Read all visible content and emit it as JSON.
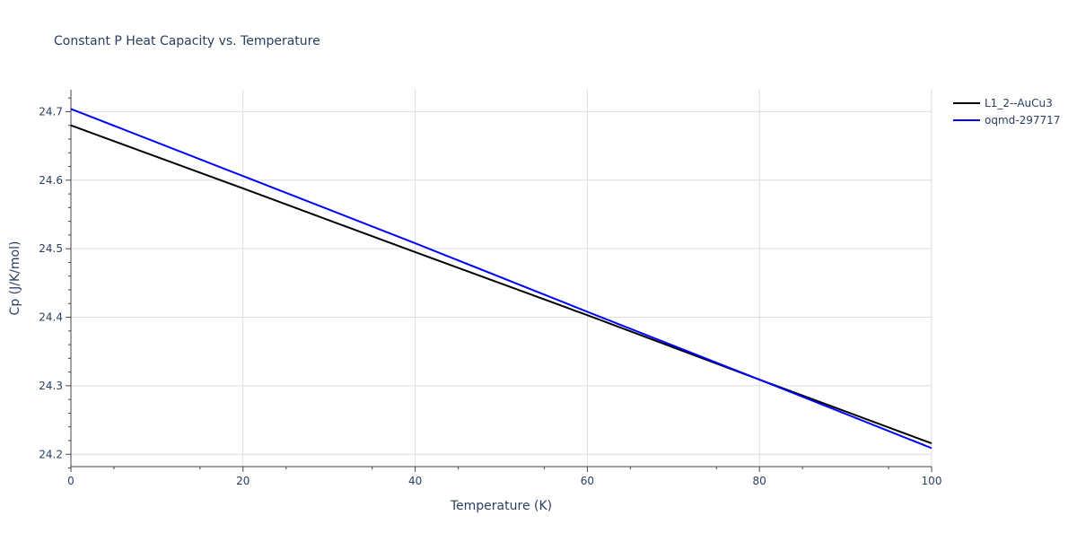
{
  "chart_data": {
    "type": "line",
    "title": "Constant P Heat Capacity vs. Temperature",
    "xlabel": "Temperature (K)",
    "ylabel": "Cp (J/K/mol)",
    "xlim": [
      0,
      100
    ],
    "ylim": [
      24.182,
      24.732
    ],
    "xticks": [
      0,
      20,
      40,
      60,
      80,
      100
    ],
    "yticks": [
      24.2,
      24.3,
      24.4,
      24.5,
      24.6,
      24.7
    ],
    "ytick_labels": [
      "24.2",
      "24.3",
      "24.4",
      "24.5",
      "24.6",
      "24.7"
    ],
    "grid": true,
    "legend_position": "top-right",
    "series": [
      {
        "name": "L1_2--AuCu3",
        "color": "#000000",
        "x": [
          0,
          20,
          40,
          60,
          80,
          100
        ],
        "y": [
          24.68,
          24.588,
          24.495,
          24.403,
          24.309,
          24.216
        ]
      },
      {
        "name": "oqmd-297717",
        "color": "#0000ff",
        "x": [
          0,
          20,
          40,
          60,
          80,
          100
        ],
        "y": [
          24.704,
          24.606,
          24.508,
          24.408,
          24.309,
          24.209
        ]
      }
    ]
  }
}
